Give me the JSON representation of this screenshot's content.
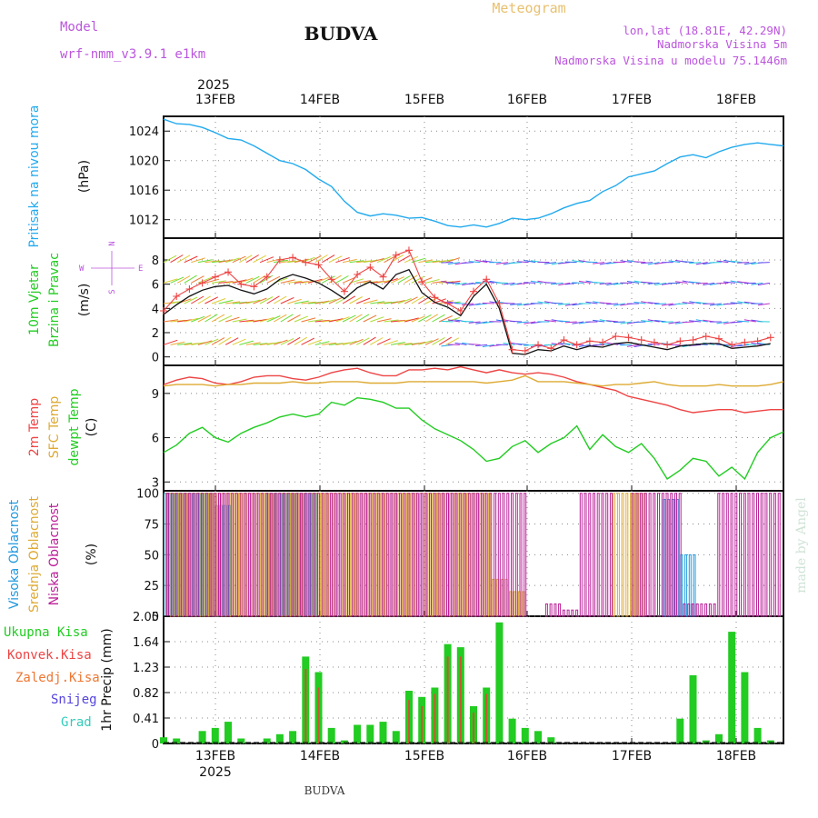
{
  "header": {
    "model_label": "Model",
    "model_name": "wrf-nmm_v3.9.1 e1km",
    "station": "BUDVA",
    "product": "Meteogram",
    "lonlat": "lon,lat (18.81E, 42.29N)",
    "elevation": "Nadmorska Visina 5m",
    "model_elevation": "Nadmorska Visina u modelu 75.1446m"
  },
  "footer": {
    "station": "BUDVA",
    "credit": "made by Angel"
  },
  "colors": {
    "pressure": "#22aaee",
    "temp2m": "#ee4444",
    "sfc": "#ddaa33",
    "dewpt": "#22cc22",
    "high_cloud": "#2299dd",
    "mid_cloud": "#ddaa33",
    "low_cloud": "#bb2299",
    "precip_total": "#22cc22",
    "precip_conv": "#ee4444",
    "snow": "#5544dd",
    "hail": "#33ccbb",
    "title_pink": "#bb55dd",
    "meteogram_orange": "#e8c070"
  },
  "chart_data": [
    {
      "id": "pressure",
      "type": "line",
      "ylabel": [
        "Pritisak na nivou mora",
        "(hPa)"
      ],
      "x_top_year": "2025",
      "x_top_ticks": [
        "13FEB",
        "14FEB",
        "15FEB",
        "16FEB",
        "17FEB",
        "18FEB"
      ],
      "ylim": [
        1009.5,
        1026
      ],
      "yticks": [
        1012,
        1016,
        1020,
        1024
      ],
      "grid": true,
      "x": [
        0,
        3,
        6,
        9,
        12,
        15,
        18,
        21,
        24,
        27,
        30,
        33,
        36,
        39,
        42,
        45,
        48,
        51,
        54,
        57,
        60,
        63,
        66,
        69,
        72,
        75,
        78,
        81,
        84,
        87,
        90,
        93,
        96,
        99,
        102,
        105,
        108,
        111,
        114,
        117,
        120,
        123,
        126,
        129,
        132,
        135,
        138,
        141,
        144
      ],
      "values": [
        1025.6,
        1025.0,
        1024.9,
        1024.5,
        1023.8,
        1023.0,
        1022.8,
        1022.0,
        1021.0,
        1020.0,
        1019.6,
        1018.8,
        1017.5,
        1016.5,
        1014.5,
        1013.0,
        1012.5,
        1012.8,
        1012.6,
        1012.2,
        1012.3,
        1011.8,
        1011.2,
        1011.0,
        1011.3,
        1011.0,
        1011.5,
        1012.2,
        1012.0,
        1012.2,
        1012.8,
        1013.6,
        1014.2,
        1014.6,
        1015.8,
        1016.6,
        1017.8,
        1018.2,
        1018.6,
        1019.6,
        1020.5,
        1020.8,
        1020.4,
        1021.2,
        1021.8,
        1022.2,
        1022.4,
        1022.2,
        1022.0
      ]
    },
    {
      "id": "wind",
      "type": "line",
      "ylabel": [
        "10m Vjetar",
        "Brzina i Pravac",
        "(m/s)"
      ],
      "compass": {
        "n": "N",
        "s": "S",
        "w": "W",
        "e": "E"
      },
      "ylim": [
        -0.7,
        9.8
      ],
      "yticks": [
        0,
        2,
        4,
        6,
        8
      ],
      "grid": true,
      "x": [
        0,
        3,
        6,
        9,
        12,
        15,
        18,
        21,
        24,
        27,
        30,
        33,
        36,
        39,
        42,
        45,
        48,
        51,
        54,
        57,
        60,
        63,
        66,
        69,
        72,
        75,
        78,
        81,
        84,
        87,
        90,
        93,
        96,
        99,
        102,
        105,
        108,
        111,
        114,
        117,
        120,
        123,
        126,
        129,
        132,
        135,
        138,
        141
      ],
      "series": [
        {
          "name": "speed",
          "values": [
            3.5,
            4.3,
            5.0,
            5.5,
            5.8,
            5.9,
            5.5,
            5.2,
            5.6,
            6.4,
            6.8,
            6.5,
            6.1,
            5.5,
            4.8,
            5.7,
            6.2,
            5.6,
            6.8,
            7.2,
            5.3,
            4.5,
            4.1,
            3.4,
            5.0,
            6.0,
            4.0,
            0.3,
            0.2,
            0.6,
            0.5,
            0.9,
            0.6,
            0.9,
            0.8,
            1.1,
            1.2,
            1.0,
            0.8,
            0.6,
            0.9,
            1.0,
            1.1,
            1.1,
            0.7,
            0.8,
            0.9,
            1.1
          ]
        },
        {
          "name": "gust",
          "values": [
            3.8,
            5.0,
            5.6,
            6.1,
            6.6,
            7.0,
            6.0,
            5.8,
            6.6,
            8.0,
            8.2,
            7.8,
            7.6,
            6.4,
            5.4,
            6.8,
            7.4,
            6.6,
            8.4,
            8.8,
            6.2,
            4.9,
            4.4,
            3.8,
            5.4,
            6.4,
            4.4,
            0.6,
            0.5,
            1.0,
            0.7,
            1.4,
            1.0,
            1.3,
            1.2,
            1.7,
            1.6,
            1.4,
            1.2,
            1.0,
            1.3,
            1.4,
            1.7,
            1.5,
            1.0,
            1.2,
            1.3,
            1.6
          ]
        }
      ]
    },
    {
      "id": "temperature",
      "type": "line",
      "ylabel_parts": [
        "2m Temp",
        "SFC Temp",
        "dewpt Temp",
        "(C)"
      ],
      "ylim": [
        2.4,
        10.9
      ],
      "yticks": [
        3,
        6,
        9
      ],
      "grid": true,
      "x": [
        0,
        3,
        6,
        9,
        12,
        15,
        18,
        21,
        24,
        27,
        30,
        33,
        36,
        39,
        42,
        45,
        48,
        51,
        54,
        57,
        60,
        63,
        66,
        69,
        72,
        75,
        78,
        81,
        84,
        87,
        90,
        93,
        96,
        99,
        102,
        105,
        108,
        111,
        114,
        117,
        120,
        123,
        126,
        129,
        132,
        135,
        138,
        141,
        144
      ],
      "series": [
        {
          "name": "2m Temp",
          "values": [
            9.6,
            9.9,
            10.1,
            10.0,
            9.7,
            9.6,
            9.8,
            10.1,
            10.2,
            10.2,
            10.0,
            9.9,
            10.1,
            10.4,
            10.6,
            10.7,
            10.4,
            10.2,
            10.2,
            10.6,
            10.6,
            10.7,
            10.6,
            10.8,
            10.6,
            10.4,
            10.6,
            10.4,
            10.3,
            10.4,
            10.3,
            10.1,
            9.8,
            9.6,
            9.4,
            9.2,
            8.8,
            8.6,
            8.4,
            8.2,
            7.9,
            7.7,
            7.8,
            7.9,
            7.9,
            7.7,
            7.8,
            7.9,
            7.9
          ]
        },
        {
          "name": "SFC Temp",
          "values": [
            9.5,
            9.6,
            9.6,
            9.6,
            9.5,
            9.6,
            9.6,
            9.7,
            9.7,
            9.7,
            9.8,
            9.7,
            9.7,
            9.8,
            9.8,
            9.8,
            9.7,
            9.7,
            9.7,
            9.8,
            9.8,
            9.8,
            9.8,
            9.8,
            9.8,
            9.7,
            9.8,
            9.9,
            10.2,
            9.8,
            9.8,
            9.8,
            9.7,
            9.6,
            9.5,
            9.6,
            9.6,
            9.7,
            9.8,
            9.6,
            9.5,
            9.5,
            9.5,
            9.6,
            9.5,
            9.5,
            9.5,
            9.6,
            9.8
          ]
        },
        {
          "name": "dewpt Temp",
          "values": [
            5.0,
            5.5,
            6.3,
            6.7,
            6.0,
            5.7,
            6.3,
            6.7,
            7.0,
            7.4,
            7.6,
            7.4,
            7.6,
            8.4,
            8.2,
            8.7,
            8.6,
            8.4,
            8.0,
            8.0,
            7.2,
            6.6,
            6.2,
            5.8,
            5.2,
            4.4,
            4.6,
            5.4,
            5.8,
            5.0,
            5.6,
            6.0,
            6.8,
            5.2,
            6.2,
            5.4,
            5.0,
            5.6,
            4.6,
            3.2,
            3.8,
            4.6,
            4.4,
            3.4,
            4.0,
            3.2,
            5.0,
            6.0,
            6.4
          ]
        }
      ]
    },
    {
      "id": "clouds",
      "type": "bar",
      "ylabel_parts": [
        "Visoka Oblacnost",
        "Srednja Oblacnost",
        "Niska Oblacnost",
        "(%)"
      ],
      "ylim": [
        0,
        102
      ],
      "yticks": [
        0,
        25,
        50,
        75,
        100
      ],
      "grid": true,
      "x": [
        0,
        4,
        8,
        12,
        16,
        20,
        24,
        28,
        32,
        36,
        40,
        44,
        48,
        52,
        56,
        60,
        64,
        68,
        72,
        76,
        80,
        84,
        88,
        92,
        96,
        100,
        104,
        108,
        112,
        116,
        120,
        124,
        128,
        132,
        136,
        140
      ],
      "series": [
        {
          "name": "Visoka Oblacnost",
          "values": [
            100,
            100,
            100,
            90,
            0,
            0,
            100,
            100,
            100,
            0,
            0,
            0,
            0,
            0,
            0,
            0,
            0,
            0,
            0,
            0,
            0,
            0,
            0,
            0,
            0,
            0,
            0,
            0,
            0,
            95,
            50,
            0,
            0,
            0,
            0,
            0
          ]
        },
        {
          "name": "Srednja Oblacnost",
          "values": [
            100,
            100,
            100,
            100,
            100,
            100,
            100,
            100,
            100,
            100,
            100,
            100,
            100,
            100,
            100,
            100,
            100,
            100,
            100,
            30,
            20,
            0,
            0,
            0,
            0,
            0,
            100,
            100,
            0,
            0,
            0,
            0,
            0,
            0,
            0,
            0
          ]
        },
        {
          "name": "Niska Oblacnost",
          "values": [
            100,
            100,
            100,
            100,
            100,
            100,
            100,
            100,
            100,
            100,
            100,
            100,
            100,
            100,
            100,
            100,
            100,
            100,
            100,
            100,
            100,
            0,
            10,
            5,
            100,
            100,
            0,
            100,
            100,
            100,
            10,
            10,
            100,
            100,
            100,
            100
          ]
        }
      ]
    },
    {
      "id": "precip",
      "type": "bar",
      "ylabel": "1hr Precip (mm)",
      "legend": [
        "Ukupna Kisa",
        "Konvek.Kisa",
        "Zaledj.Kisa",
        "Snijeg",
        "Grad"
      ],
      "x_bottom_ticks": [
        "13FEB",
        "14FEB",
        "15FEB",
        "16FEB",
        "17FEB",
        "18FEB"
      ],
      "x_bottom_year": "2025",
      "ylim": [
        0,
        2.05
      ],
      "yticks": [
        0,
        0.41,
        0.82,
        1.23,
        1.64,
        2.05
      ],
      "grid": true,
      "x": [
        0,
        3,
        6,
        9,
        12,
        15,
        18,
        21,
        24,
        27,
        30,
        33,
        36,
        39,
        42,
        45,
        48,
        51,
        54,
        57,
        60,
        63,
        66,
        69,
        72,
        75,
        78,
        81,
        84,
        87,
        90,
        93,
        96,
        99,
        102,
        105,
        108,
        111,
        114,
        117,
        120,
        123,
        126,
        129,
        132,
        135,
        138,
        141,
        144
      ],
      "series": [
        {
          "name": "Ukupna Kisa",
          "values": [
            0.1,
            0.08,
            0.0,
            0.2,
            0.25,
            0.35,
            0.08,
            0.0,
            0.08,
            0.15,
            0.2,
            1.4,
            1.15,
            0.25,
            0.05,
            0.3,
            0.3,
            0.35,
            0.2,
            0.85,
            0.75,
            0.9,
            1.6,
            1.55,
            0.6,
            0.9,
            1.95,
            0.4,
            0.25,
            0.2,
            0.1,
            0.0,
            0.0,
            0.0,
            0.0,
            0.0,
            0.0,
            0.0,
            0.0,
            0.0,
            0.4,
            1.1,
            0.05,
            0.15,
            1.8,
            1.15,
            0.25,
            0.05,
            0.0
          ]
        },
        {
          "name": "Konvek.Kisa",
          "values": [
            0,
            0,
            0,
            0,
            0,
            0,
            0,
            0,
            0,
            0,
            0,
            1.2,
            0.9,
            0,
            0,
            0,
            0,
            0,
            0,
            0.7,
            0.6,
            0.8,
            1.4,
            1.4,
            0.5,
            0.8,
            0,
            0,
            0,
            0,
            0,
            0,
            0,
            0,
            0,
            0,
            0,
            0,
            0,
            0,
            0,
            0,
            0,
            0,
            0,
            0,
            0,
            0,
            0
          ]
        }
      ]
    }
  ]
}
